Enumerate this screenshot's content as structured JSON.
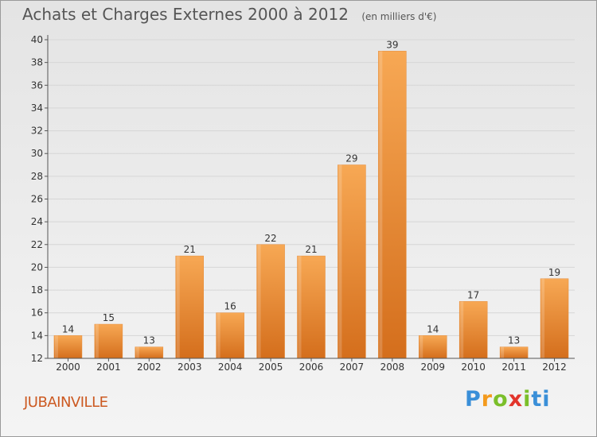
{
  "header": {
    "title": "Achats et Charges Externes 2000 à 2012",
    "unit": "(en milliers d'€)"
  },
  "footer": {
    "town": "JUBAINVILLE",
    "logo_letters": [
      "P",
      "r",
      "o",
      "x",
      "i",
      "ti"
    ]
  },
  "colors": {
    "bar_light": "#f7a854",
    "bar_dark": "#d46e1c",
    "axis": "#555555",
    "grid": "#d6d6d6",
    "town": "#cc5a22"
  },
  "chart_data": {
    "type": "bar",
    "title": "Achats et Charges Externes 2000 à 2012",
    "subtitle": "(en milliers d'€)",
    "categories": [
      "2000",
      "2001",
      "2002",
      "2003",
      "2004",
      "2005",
      "2006",
      "2007",
      "2008",
      "2009",
      "2010",
      "2011",
      "2012"
    ],
    "values": [
      14,
      15,
      13,
      21,
      16,
      22,
      21,
      29,
      39,
      14,
      17,
      13,
      19
    ],
    "ylim": [
      12,
      40
    ],
    "yticks": [
      12,
      14,
      16,
      18,
      20,
      22,
      24,
      26,
      28,
      30,
      32,
      34,
      36,
      38,
      40
    ],
    "grid": true,
    "data_labels": true
  }
}
